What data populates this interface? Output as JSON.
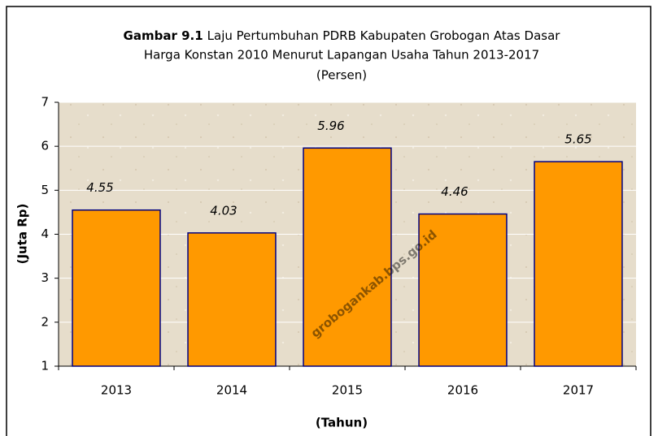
{
  "chart_data": {
    "type": "bar",
    "title_label": "Gambar 9.1",
    "title": [
      "Laju Pertumbuhan PDRB Kabupaten Grobogan Atas Dasar",
      "Harga Konstan 2010 Menurut Lapangan Usaha Tahun 2013-2017",
      "(Persen)"
    ],
    "categories": [
      "2013",
      "2014",
      "2015",
      "2016",
      "2017"
    ],
    "values": [
      4.55,
      4.03,
      5.96,
      4.46,
      5.65
    ],
    "color": "#ff9900",
    "edge_color": "#000080",
    "ylim": [
      1,
      7
    ],
    "yticks": [
      1,
      2,
      3,
      4,
      5,
      6,
      7
    ],
    "grid": true,
    "xlabel": "(Tahun)",
    "ylabel": "(Juta Rp)",
    "watermark": "grobogankab.bps.go.id"
  }
}
